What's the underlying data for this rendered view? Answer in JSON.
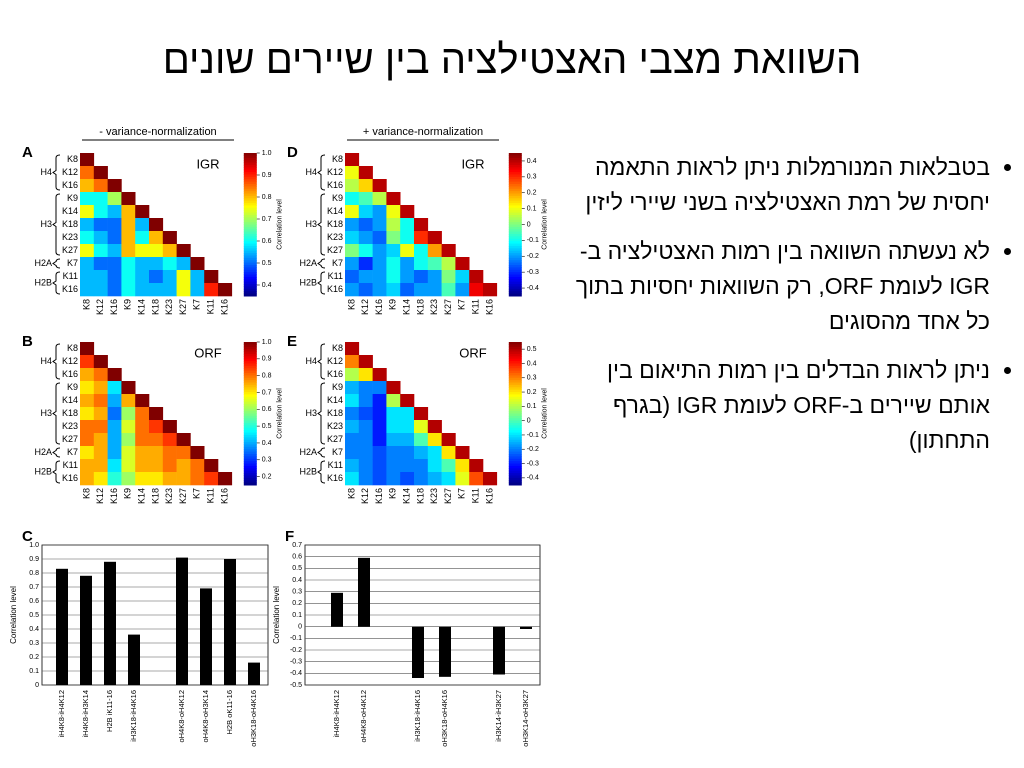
{
  "title": "השוואת מצבי האצטילציה בין שיירים שונים",
  "bullets": [
    "בטבלאות המנורמלות ניתן לראות התאמה יחסית של רמת האצטילציה בשני שיירי ליזין",
    "לא נעשתה השוואה בין רמות האצטילציה ב-IGR לעומת ORF, רק השוואות יחסיות בתוך כל אחד מהסוגים",
    "ניתן לראות הבדלים בין רמות התיאום בין אותם שיירים ב-ORF לעומת IGR (בגרף התחתון)"
  ],
  "column_headers": [
    "- variance-normalization",
    "+ variance-normalization"
  ],
  "chart_data": [
    {
      "type": "heatmap",
      "panel": "A",
      "label": "IGR",
      "categories": [
        "K8",
        "K12",
        "K16",
        "K9",
        "K14",
        "K18",
        "K23",
        "K27",
        "K7",
        "K11",
        "K16"
      ],
      "row_groups": [
        "H4",
        "H3",
        "H2A",
        "H2B"
      ],
      "values": [
        [
          1
        ],
        [
          0.85,
          1
        ],
        [
          0.8,
          0.85,
          1
        ],
        [
          0.6,
          0.6,
          0.7,
          1
        ],
        [
          0.75,
          0.6,
          0.55,
          0.8,
          1
        ],
        [
          0.55,
          0.5,
          0.5,
          0.8,
          0.55,
          1
        ],
        [
          0.6,
          0.55,
          0.5,
          0.8,
          0.6,
          0.8,
          1
        ],
        [
          0.75,
          0.6,
          0.55,
          0.8,
          0.75,
          0.75,
          0.8,
          1
        ],
        [
          0.55,
          0.5,
          0.5,
          0.6,
          0.55,
          0.55,
          0.6,
          0.55,
          1
        ],
        [
          0.55,
          0.55,
          0.5,
          0.6,
          0.55,
          0.5,
          0.55,
          0.75,
          0.55,
          1
        ],
        [
          0.55,
          0.55,
          0.5,
          0.6,
          0.55,
          0.55,
          0.55,
          0.75,
          0.55,
          0.9,
          1
        ]
      ],
      "zlim": [
        0.35,
        1
      ],
      "zticks": [
        {
          "value": 1,
          "label": "1.0"
        },
        0.9,
        0.8,
        0.7,
        0.6,
        0.5,
        0.4
      ],
      "colorbar_label": "Correlation level"
    },
    {
      "type": "heatmap",
      "panel": "B",
      "label": "ORF",
      "categories": [
        "K8",
        "K12",
        "K16",
        "K9",
        "K14",
        "K18",
        "K23",
        "K27",
        "K7",
        "K11",
        "K16"
      ],
      "row_groups": [
        "H4",
        "H3",
        "H2A",
        "H2B"
      ],
      "values": [
        [
          1
        ],
        [
          0.85,
          1
        ],
        [
          0.75,
          0.8,
          1
        ],
        [
          0.7,
          0.75,
          0.45,
          1
        ],
        [
          0.75,
          0.8,
          0.4,
          0.75,
          1
        ],
        [
          0.7,
          0.75,
          0.35,
          0.6,
          0.8,
          1
        ],
        [
          0.8,
          0.8,
          0.4,
          0.65,
          0.8,
          0.85,
          1
        ],
        [
          0.8,
          0.75,
          0.4,
          0.6,
          0.8,
          0.8,
          0.85,
          1
        ],
        [
          0.7,
          0.75,
          0.4,
          0.65,
          0.75,
          0.75,
          0.8,
          0.8,
          1
        ],
        [
          0.75,
          0.75,
          0.45,
          0.65,
          0.75,
          0.75,
          0.8,
          0.75,
          0.8,
          1
        ],
        [
          0.75,
          0.7,
          0.5,
          0.6,
          0.7,
          0.7,
          0.75,
          0.75,
          0.8,
          0.85,
          1
        ]
      ],
      "zlim": [
        0.15,
        1
      ],
      "zticks": [
        {
          "value": 1,
          "label": "1.0"
        },
        0.9,
        0.8,
        0.7,
        0.6,
        0.5,
        0.4,
        0.3,
        0.2
      ],
      "colorbar_label": "Correlation level"
    },
    {
      "type": "bar",
      "panel": "C",
      "categories": [
        "iH4K8-iH4K12",
        "iH4K8-iH3K14",
        "H2B iK11-16",
        "iH3K18-iH4K16",
        null,
        "oH4K8-oH4K12",
        "oH4K8-oH3K14",
        "H2B oK11-16",
        "oH3K18-oH4K16"
      ],
      "values": [
        0.83,
        0.78,
        0.88,
        0.36,
        null,
        0.91,
        0.69,
        0.9,
        0.16
      ],
      "color": "#000000",
      "ylim": [
        0,
        1
      ],
      "yticks": [
        0,
        0.1,
        0.2,
        0.3,
        0.4,
        0.5,
        0.6,
        0.7,
        0.8,
        0.9,
        {
          "value": 1,
          "label": "1.0"
        }
      ],
      "ylabel": "Correlation level",
      "grid": true
    },
    {
      "type": "heatmap",
      "panel": "D",
      "label": "IGR",
      "categories": [
        "K8",
        "K12",
        "K16",
        "K9",
        "K14",
        "K18",
        "K23",
        "K27",
        "K7",
        "K11",
        "K16"
      ],
      "row_groups": [
        "H4",
        "H3",
        "H2A",
        "H2B"
      ],
      "values": [
        [
          0.4
        ],
        [
          0.1,
          0.4
        ],
        [
          0.05,
          0.15,
          0.4
        ],
        [
          -0.1,
          -0.05,
          0.05,
          0.4
        ],
        [
          0.1,
          -0.15,
          -0.2,
          0.1,
          0.4
        ],
        [
          -0.2,
          -0.25,
          -0.2,
          0.05,
          -0.1,
          0.4
        ],
        [
          -0.15,
          -0.2,
          -0.25,
          0,
          -0.1,
          0.3,
          0.4
        ],
        [
          0,
          -0.1,
          -0.2,
          -0.15,
          0.1,
          -0.1,
          0.2,
          0.4
        ],
        [
          -0.2,
          -0.3,
          -0.2,
          -0.1,
          -0.2,
          -0.1,
          -0.05,
          0.05,
          0.4
        ],
        [
          -0.25,
          -0.2,
          -0.2,
          -0.1,
          -0.2,
          -0.25,
          -0.2,
          0,
          -0.15,
          0.4
        ],
        [
          -0.2,
          -0.25,
          -0.2,
          -0.15,
          -0.25,
          -0.2,
          -0.2,
          -0.05,
          -0.2,
          0.35,
          0.4
        ]
      ],
      "zlim": [
        -0.45,
        0.45
      ],
      "zticks": [
        0.4,
        0.3,
        0.2,
        0.1,
        0,
        -0.1,
        -0.2,
        -0.3,
        -0.4
      ],
      "colorbar_label": "Correlation level"
    },
    {
      "type": "heatmap",
      "panel": "E",
      "label": "ORF",
      "categories": [
        "K8",
        "K12",
        "K16",
        "K9",
        "K14",
        "K18",
        "K23",
        "K27",
        "K7",
        "K11",
        "K16"
      ],
      "row_groups": [
        "H4",
        "H3",
        "H2A",
        "H2B"
      ],
      "values": [
        [
          0.5
        ],
        [
          0.3,
          0.5
        ],
        [
          0.1,
          0.2,
          0.5
        ],
        [
          -0.15,
          -0.2,
          -0.2,
          0.5
        ],
        [
          -0.1,
          -0.2,
          -0.3,
          0.1,
          0.5
        ],
        [
          -0.2,
          -0.25,
          -0.3,
          -0.1,
          -0.1,
          0.5
        ],
        [
          -0.15,
          -0.2,
          -0.3,
          -0.1,
          -0.1,
          0.15,
          0.5
        ],
        [
          -0.2,
          -0.2,
          -0.3,
          -0.15,
          -0.15,
          0,
          0.2,
          0.5
        ],
        [
          -0.2,
          -0.2,
          -0.25,
          -0.2,
          -0.2,
          -0.15,
          -0.1,
          0.2,
          0.5
        ],
        [
          -0.15,
          -0.2,
          -0.25,
          -0.2,
          -0.2,
          -0.2,
          -0.1,
          0,
          0.2,
          0.5
        ],
        [
          -0.1,
          -0.2,
          -0.25,
          -0.2,
          -0.25,
          -0.2,
          -0.15,
          -0.1,
          0.15,
          0.35,
          0.5
        ]
      ],
      "zlim": [
        -0.45,
        0.55
      ],
      "zticks": [
        0.5,
        0.4,
        0.3,
        0.2,
        0.1,
        0,
        -0.1,
        -0.2,
        -0.3,
        -0.4
      ],
      "colorbar_label": "Correlation level"
    },
    {
      "type": "bar",
      "panel": "F",
      "categories": [
        "iH4K8-iH4K12",
        "oH4K8-oH4K12",
        null,
        "iH3K18-iH4K16",
        "oH3K18-oH4K16",
        null,
        "iH3K14-iH3K27",
        "oH3K14-oH3K27"
      ],
      "values": [
        0.29,
        0.59,
        null,
        -0.44,
        -0.43,
        null,
        -0.41,
        -0.02
      ],
      "color": "#000000",
      "ylim": [
        -0.5,
        0.7
      ],
      "yticks": [
        0.7,
        0.6,
        0.5,
        0.4,
        0.3,
        0.2,
        0.1,
        0,
        -0.1,
        -0.2,
        -0.3,
        -0.4,
        -0.5
      ],
      "ylabel": "Correlation level",
      "grid": true
    }
  ]
}
